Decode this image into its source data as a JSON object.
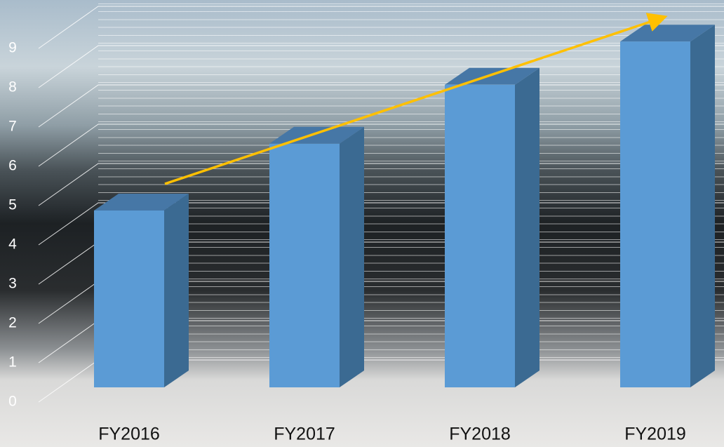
{
  "chart_data": {
    "type": "bar3d",
    "categories": [
      "FY2016",
      "FY2017",
      "FY2018",
      "FY2019"
    ],
    "values": [
      4.5,
      6.2,
      7.7,
      8.8
    ],
    "color": "#5b9bd5",
    "ylim": [
      0,
      10
    ],
    "yticks": [
      0,
      1,
      2,
      3,
      4,
      5,
      6,
      7,
      8,
      9
    ],
    "grid": true
  }
}
